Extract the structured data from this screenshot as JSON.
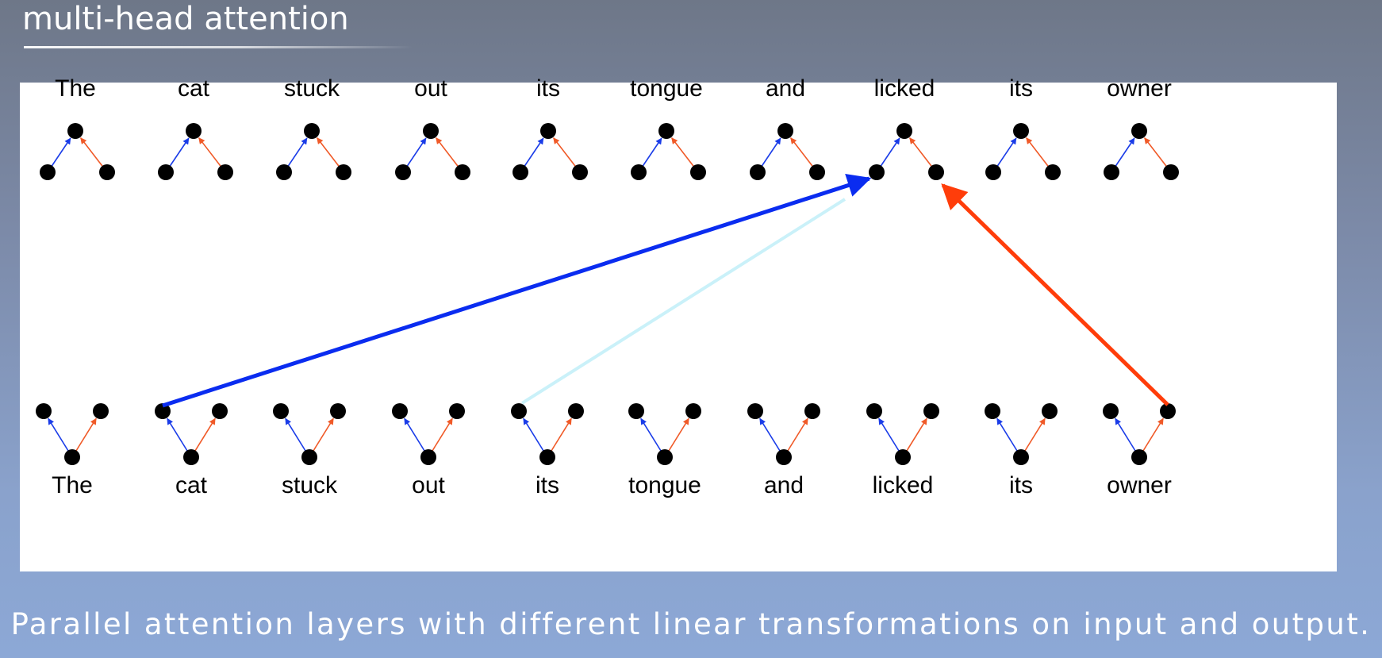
{
  "slide": {
    "title": "multi-head attention",
    "caption": "Parallel attention layers with different linear transformations on input and output."
  },
  "diagram": {
    "top_words": [
      "The",
      "cat",
      "stuck",
      "out",
      "its",
      "tongue",
      "and",
      "licked",
      "its",
      "owner"
    ],
    "bottom_words": [
      "The",
      "cat",
      "stuck",
      "out",
      "its",
      "tongue",
      "and",
      "licked",
      "its",
      "owner"
    ],
    "colors": {
      "blue_head": "#0a2cf0",
      "orange_head": "#ff3d0a",
      "faint_head": "#c4f0f8",
      "small_blue": "#1a3ce8",
      "small_orange": "#f05a28",
      "node": "#000000"
    },
    "attention_arrows": [
      {
        "name": "blue-attention-arrow",
        "from_word": "cat",
        "to_word": "licked",
        "head": "blue"
      },
      {
        "name": "faint-attention-arrow",
        "from_word": "its",
        "to_word": "licked",
        "head": "faint"
      },
      {
        "name": "orange-attention-arrow",
        "from_word": "owner",
        "to_word": "licked",
        "head": "orange"
      }
    ]
  }
}
